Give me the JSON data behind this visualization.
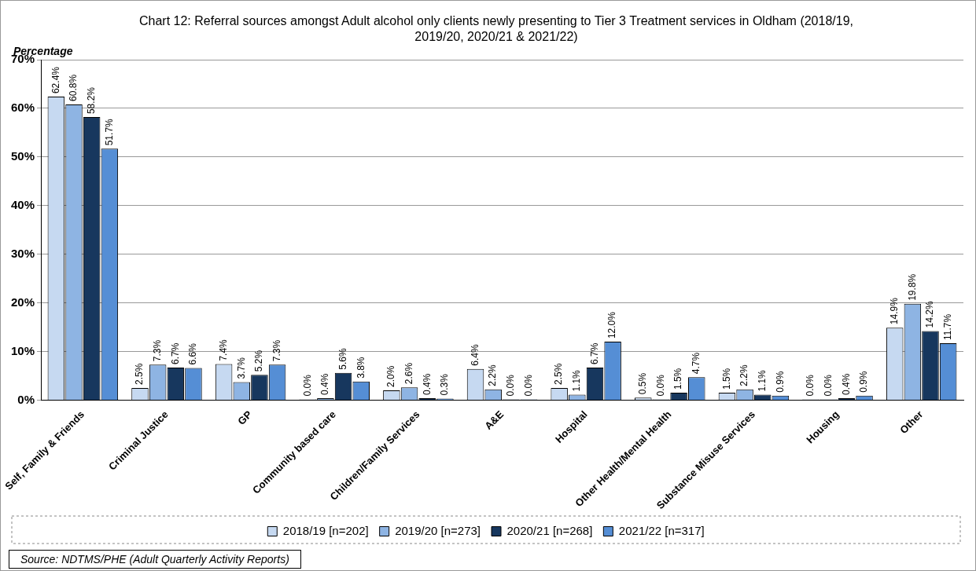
{
  "chart_data": {
    "type": "bar",
    "title": "Chart 12: Referral sources amongst Adult alcohol only clients newly presenting to Tier 3 Treatment services in Oldham (2018/19, 2019/20, 2020/21 & 2021/22)",
    "ylabel": "Percentage",
    "categories": [
      "Self, Family & Friends",
      "Criminal Justice",
      "GP",
      "Community based care",
      "Children/Family Services",
      "A&E",
      "Hospital",
      "Other Health/Mental Health",
      "Substance Misuse Services",
      "Housing",
      "Other"
    ],
    "series": [
      {
        "name": "2018/19 [n=202]",
        "color": "#c6d9f1",
        "values": [
          62.4,
          2.5,
          7.4,
          0.0,
          2.0,
          6.4,
          2.5,
          0.5,
          1.5,
          0.0,
          14.9
        ],
        "value_labels": [
          "62.4%",
          "2.5%",
          "7.4%",
          "0.0%",
          "2.0%",
          "6.4%",
          "2.5%",
          "0.5%",
          "1.5%",
          "0.0%",
          "14.9%"
        ]
      },
      {
        "name": "2019/20 [n=273]",
        "color": "#8eb4e3",
        "values": [
          60.8,
          7.3,
          3.7,
          0.4,
          2.6,
          2.2,
          1.1,
          0.0,
          2.2,
          0.0,
          19.8
        ],
        "value_labels": [
          "60.8%",
          "7.3%",
          "3.7%",
          "0.4%",
          "2.6%",
          "2.2%",
          "1.1%",
          "0.0%",
          "2.2%",
          "0.0%",
          "19.8%"
        ]
      },
      {
        "name": "2020/21 [n=268]",
        "color": "#17375e",
        "values": [
          58.2,
          6.7,
          5.2,
          5.6,
          0.4,
          0.0,
          6.7,
          1.5,
          1.1,
          0.4,
          14.2
        ],
        "value_labels": [
          "58.2%",
          "6.7%",
          "5.2%",
          "5.6%",
          "0.4%",
          "0.0%",
          "6.7%",
          "1.5%",
          "1.1%",
          "0.4%",
          "14.2%"
        ]
      },
      {
        "name": "2021/22 [n=317]",
        "color": "#558ed5",
        "values": [
          51.7,
          6.6,
          7.3,
          3.8,
          0.3,
          0.0,
          12.0,
          4.7,
          0.9,
          0.9,
          11.7
        ],
        "value_labels": [
          "51.7%",
          "6.6%",
          "7.3%",
          "3.8%",
          "0.3%",
          "0.0%",
          "12.0%",
          "4.7%",
          "0.9%",
          "0.9%",
          "11.7%"
        ]
      }
    ],
    "ylim": [
      0,
      70
    ],
    "yticks": [
      {
        "value": 0,
        "label": "0%"
      },
      {
        "value": 10,
        "label": "10%"
      },
      {
        "value": 20,
        "label": "20%"
      },
      {
        "value": 30,
        "label": "30%"
      },
      {
        "value": 40,
        "label": "40%"
      },
      {
        "value": 50,
        "label": "50%"
      },
      {
        "value": 60,
        "label": "60%"
      },
      {
        "value": 70,
        "label": "70%"
      }
    ],
    "grid": "y",
    "legend": "bottom",
    "annotations": [
      "Source: NDTMS/PHE  (Adult Quarterly Activity Reports)"
    ]
  }
}
